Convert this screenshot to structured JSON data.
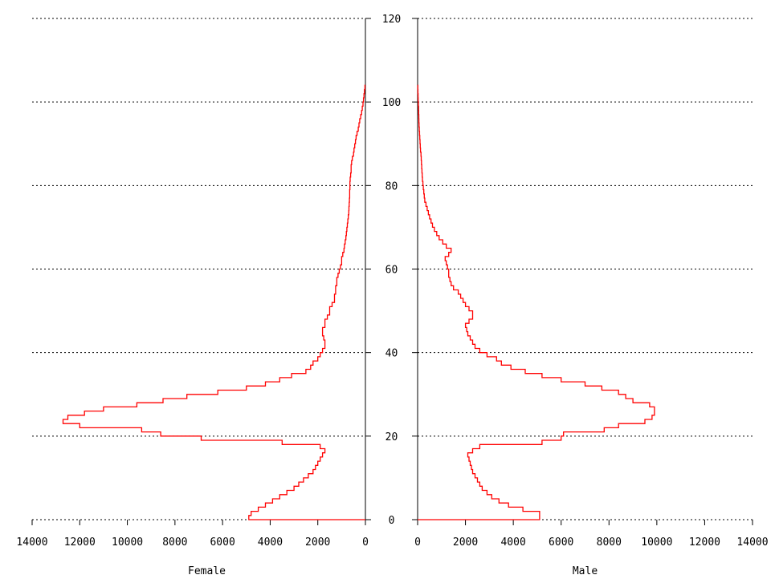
{
  "chart_data": {
    "type": "line",
    "chart_kind": "population-pyramid",
    "xlabel_left": "Female",
    "xlabel_right": "Male",
    "x_ticks": [
      "0",
      "2000",
      "4000",
      "6000",
      "8000",
      "10000",
      "12000",
      "14000"
    ],
    "y_ticks": [
      "0",
      "20",
      "40",
      "60",
      "80",
      "100",
      "120"
    ],
    "xlim": [
      0,
      14000
    ],
    "ylim": [
      0,
      120
    ],
    "grid": "horizontal-dotted",
    "line_color": "#ff0000",
    "series": [
      {
        "side": "female",
        "ages": [
          0,
          1,
          2,
          3,
          4,
          5,
          6,
          7,
          8,
          9,
          10,
          11,
          12,
          13,
          14,
          15,
          16,
          17,
          18,
          19,
          20,
          21,
          22,
          23,
          24,
          25,
          26,
          27,
          28,
          29,
          30,
          31,
          32,
          33,
          34,
          35,
          36,
          37,
          38,
          39,
          40,
          41,
          42,
          43,
          44,
          45,
          46,
          47,
          48,
          49,
          50,
          51,
          52,
          53,
          54,
          55,
          56,
          57,
          58,
          59,
          60,
          61,
          62,
          63,
          64,
          65,
          66,
          67,
          68,
          69,
          70,
          71,
          72,
          73,
          74,
          75,
          76,
          77,
          78,
          79,
          80,
          81,
          82,
          83,
          84,
          85,
          86,
          87,
          88,
          89,
          90,
          91,
          92,
          93,
          94,
          95,
          96,
          97,
          98,
          99,
          100,
          101,
          102,
          103
        ],
        "values": [
          4900,
          4800,
          4500,
          4200,
          3900,
          3600,
          3300,
          3000,
          2800,
          2600,
          2400,
          2200,
          2100,
          2000,
          1900,
          1800,
          1700,
          1900,
          3500,
          6900,
          8600,
          9400,
          12000,
          12700,
          12500,
          11800,
          11000,
          9600,
          8500,
          7500,
          6200,
          5000,
          4200,
          3600,
          3100,
          2500,
          2300,
          2200,
          2000,
          1900,
          1800,
          1700,
          1700,
          1750,
          1800,
          1800,
          1700,
          1700,
          1600,
          1500,
          1500,
          1400,
          1300,
          1300,
          1250,
          1250,
          1200,
          1200,
          1150,
          1100,
          1050,
          1000,
          1000,
          950,
          900,
          880,
          850,
          820,
          800,
          780,
          760,
          740,
          720,
          700,
          690,
          680,
          670,
          660,
          660,
          650,
          650,
          640,
          620,
          600,
          600,
          580,
          550,
          500,
          480,
          450,
          420,
          390,
          350,
          300,
          270,
          240,
          200,
          160,
          130,
          100,
          80,
          60,
          40,
          20
        ]
      },
      {
        "side": "male",
        "ages": [
          0,
          1,
          2,
          3,
          4,
          5,
          6,
          7,
          8,
          9,
          10,
          11,
          12,
          13,
          14,
          15,
          16,
          17,
          18,
          19,
          20,
          21,
          22,
          23,
          24,
          25,
          26,
          27,
          28,
          29,
          30,
          31,
          32,
          33,
          34,
          35,
          36,
          37,
          38,
          39,
          40,
          41,
          42,
          43,
          44,
          45,
          46,
          47,
          48,
          49,
          50,
          51,
          52,
          53,
          54,
          55,
          56,
          57,
          58,
          59,
          60,
          61,
          62,
          63,
          64,
          65,
          66,
          67,
          68,
          69,
          70,
          71,
          72,
          73,
          74,
          75,
          76,
          77,
          78,
          79,
          80,
          81,
          82,
          83,
          84,
          85,
          86,
          87,
          88,
          89,
          90,
          91,
          92,
          93,
          94,
          95,
          96,
          97,
          98,
          99,
          100,
          101,
          102,
          103
        ],
        "values": [
          5100,
          5100,
          4400,
          3800,
          3400,
          3100,
          2900,
          2700,
          2600,
          2500,
          2400,
          2300,
          2250,
          2200,
          2150,
          2100,
          2300,
          2600,
          5200,
          6000,
          6100,
          7800,
          8400,
          9500,
          9800,
          9900,
          9900,
          9700,
          9000,
          8700,
          8400,
          7700,
          7000,
          6000,
          5200,
          4500,
          3900,
          3500,
          3300,
          2900,
          2600,
          2400,
          2300,
          2200,
          2100,
          2050,
          2000,
          2150,
          2300,
          2300,
          2150,
          2000,
          1900,
          1800,
          1700,
          1500,
          1400,
          1350,
          1300,
          1300,
          1250,
          1200,
          1150,
          1300,
          1400,
          1200,
          1050,
          900,
          800,
          700,
          620,
          560,
          500,
          450,
          400,
          350,
          300,
          280,
          260,
          240,
          220,
          200,
          190,
          180,
          170,
          160,
          150,
          140,
          120,
          110,
          100,
          90,
          80,
          70,
          60,
          55,
          50,
          45,
          40,
          30,
          25,
          20,
          15,
          10
        ]
      }
    ]
  }
}
